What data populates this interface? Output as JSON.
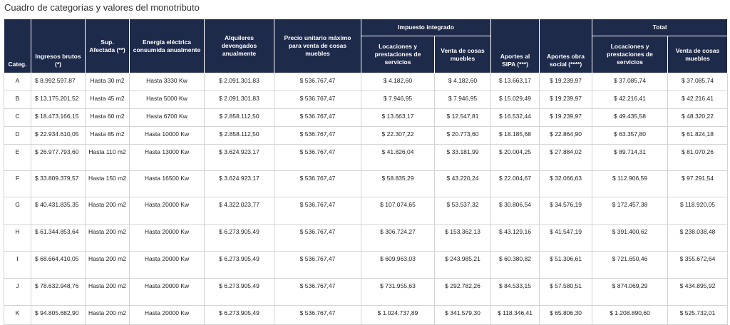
{
  "title": "Cuadro de categorías y valores del monotributo",
  "headers": {
    "categ": "Categ.",
    "ingresos": "Ingresos brutos (*)",
    "sup": "Sup. Afectada (**)",
    "energia": "Energía eléctrica consumida anualmente",
    "alquileres": "Alquileres devengados anualmente",
    "precio": "Precio unitario máximo para venta de cosas muebles",
    "impuesto_group": "Impuesto integrado",
    "imp_locaciones": "Locaciones y prestaciones de servicios",
    "imp_venta": "Venta de cosas muebles",
    "sipa": "Aportes al SIPA (***)",
    "obra": "Aportes obra social (****)",
    "total_group": "Total",
    "tot_locaciones": "Locaciones y prestaciones de servicios",
    "tot_venta": "Venta de cosas muebles"
  },
  "rows": [
    {
      "categ": "A",
      "ingresos": "$ 8.992.597,87",
      "sup": "Hasta 30 m2",
      "energia": "Hasta 3330 Kw",
      "alquileres": "$ 2.091.301,83",
      "precio": "$ 536.767,47",
      "imp_loc": "$ 4.182,60",
      "imp_venta": "$ 4.182,60",
      "sipa": "$ 13.663,17",
      "obra": "$ 19.239,97",
      "tot_loc": "$ 37.085,74",
      "tot_venta": "$ 37.085,74"
    },
    {
      "categ": "B",
      "ingresos": "$ 13.175.201,52",
      "sup": "Hasta 45 m2",
      "energia": "Hasta 5000 Kw",
      "alquileres": "$ 2.091.301,83",
      "precio": "$ 536.767,47",
      "imp_loc": "$ 7.946,95",
      "imp_venta": "$ 7.946,95",
      "sipa": "$ 15.029,49",
      "obra": "$ 19.239,97",
      "tot_loc": "$ 42.216,41",
      "tot_venta": "$ 42.216,41"
    },
    {
      "categ": "C",
      "ingresos": "$ 18.473.166,15",
      "sup": "Hasta 60 m2",
      "energia": "Hasta 6700 Kw",
      "alquileres": "$ 2.858.112,50",
      "precio": "$ 536.767,47",
      "imp_loc": "$ 13.663,17",
      "imp_venta": "$ 12.547,81",
      "sipa": "$ 16.532,44",
      "obra": "$ 19.239,97",
      "tot_loc": "$ 49.435,58",
      "tot_venta": "$ 48.320,22"
    },
    {
      "categ": "D",
      "ingresos": "$ 22.934.610,05",
      "sup": "Hasta 85 m2",
      "energia": "Hasta 10000 Kw",
      "alquileres": "$ 2.858.112,50",
      "precio": "$ 536.767,47",
      "imp_loc": "$ 22.307,22",
      "imp_venta": "$ 20.773,60",
      "sipa": "$ 18.185,68",
      "obra": "$ 22.864,90",
      "tot_loc": "$ 63.357,80",
      "tot_venta": "$ 61.824,18"
    },
    {
      "categ": "E",
      "ingresos": "$ 26.977.793,60",
      "sup": "Hasta 110 m2",
      "energia": "Hasta 13000 Kw",
      "alquileres": "$ 3.624.923,17",
      "precio": "$ 536.767,47",
      "imp_loc": "$ 41.826,04",
      "imp_venta": "$ 33.181,99",
      "sipa": "$ 20.004,25",
      "obra": "$ 27.884,02",
      "tot_loc": "$ 89.714,31",
      "tot_venta": "$ 81.070,26"
    },
    {
      "categ": "F",
      "ingresos": "$ 33.809.379,57",
      "sup": "Hasta 150 m2",
      "energia": "Hasta 16500 Kw",
      "alquileres": "$ 3.624.923,17",
      "precio": "$ 536.767,47",
      "imp_loc": "$ 58.835,29",
      "imp_venta": "$ 43.220,24",
      "sipa": "$ 22.004,67",
      "obra": "$ 32.066,63",
      "tot_loc": "$ 112.906,59",
      "tot_venta": "$ 97.291,54"
    },
    {
      "categ": "G",
      "ingresos": "$ 40.431.835,35",
      "sup": "Hasta 200 m2",
      "energia": "Hasta 20000 Kw",
      "alquileres": "$ 4.322.023,77",
      "precio": "$ 536.767,47",
      "imp_loc": "$ 107.074,65",
      "imp_venta": "$ 53.537,32",
      "sipa": "$ 30.806,54",
      "obra": "$ 34.576,19",
      "tot_loc": "$ 172.457,38",
      "tot_venta": "$ 118.920,05"
    },
    {
      "categ": "H",
      "ingresos": "$ 61.344.853,64",
      "sup": "Hasta 200 m2",
      "energia": "Hasta 20000 Kw",
      "alquileres": "$ 6.273.905,49",
      "precio": "$ 536.767,47",
      "imp_loc": "$ 306.724,27",
      "imp_venta": "$ 153.362,13",
      "sipa": "$ 43.129,16",
      "obra": "$ 41.547,19",
      "tot_loc": "$ 391.400,62",
      "tot_venta": "$ 238.038,48"
    },
    {
      "categ": "I",
      "ingresos": "$ 68.664.410,05",
      "sup": "Hasta 200 m2",
      "energia": "Hasta 20000 Kw",
      "alquileres": "$ 6.273.905,49",
      "precio": "$ 536.767,47",
      "imp_loc": "$ 609.963,03",
      "imp_venta": "$ 243.985,21",
      "sipa": "$ 60.380,82",
      "obra": "$ 51.306,61",
      "tot_loc": "$ 721.650,46",
      "tot_venta": "$ 355.672,64"
    },
    {
      "categ": "J",
      "ingresos": "$ 78.632.948,76",
      "sup": "Hasta 200 m2",
      "energia": "Hasta 20000 Kw",
      "alquileres": "$ 6.273.905,49",
      "precio": "$ 536.767,47",
      "imp_loc": "$ 731.955,63",
      "imp_venta": "$ 292.782,26",
      "sipa": "$ 84.533,15",
      "obra": "$ 57.580,51",
      "tot_loc": "$ 874.069,29",
      "tot_venta": "$ 434.895,92"
    },
    {
      "categ": "K",
      "ingresos": "$ 94.805.682,90",
      "sup": "Hasta 200 m2",
      "energia": "Hasta 20000 Kw",
      "alquileres": "$ 6.273.905,49",
      "precio": "$ 536.767,47",
      "imp_loc": "$ 1.024.737,89",
      "imp_venta": "$ 341.579,30",
      "sipa": "$ 118.346,41",
      "obra": "$ 65.806,30",
      "tot_loc": "$ 1.208.890,60",
      "tot_venta": "$ 525.732,01"
    }
  ]
}
